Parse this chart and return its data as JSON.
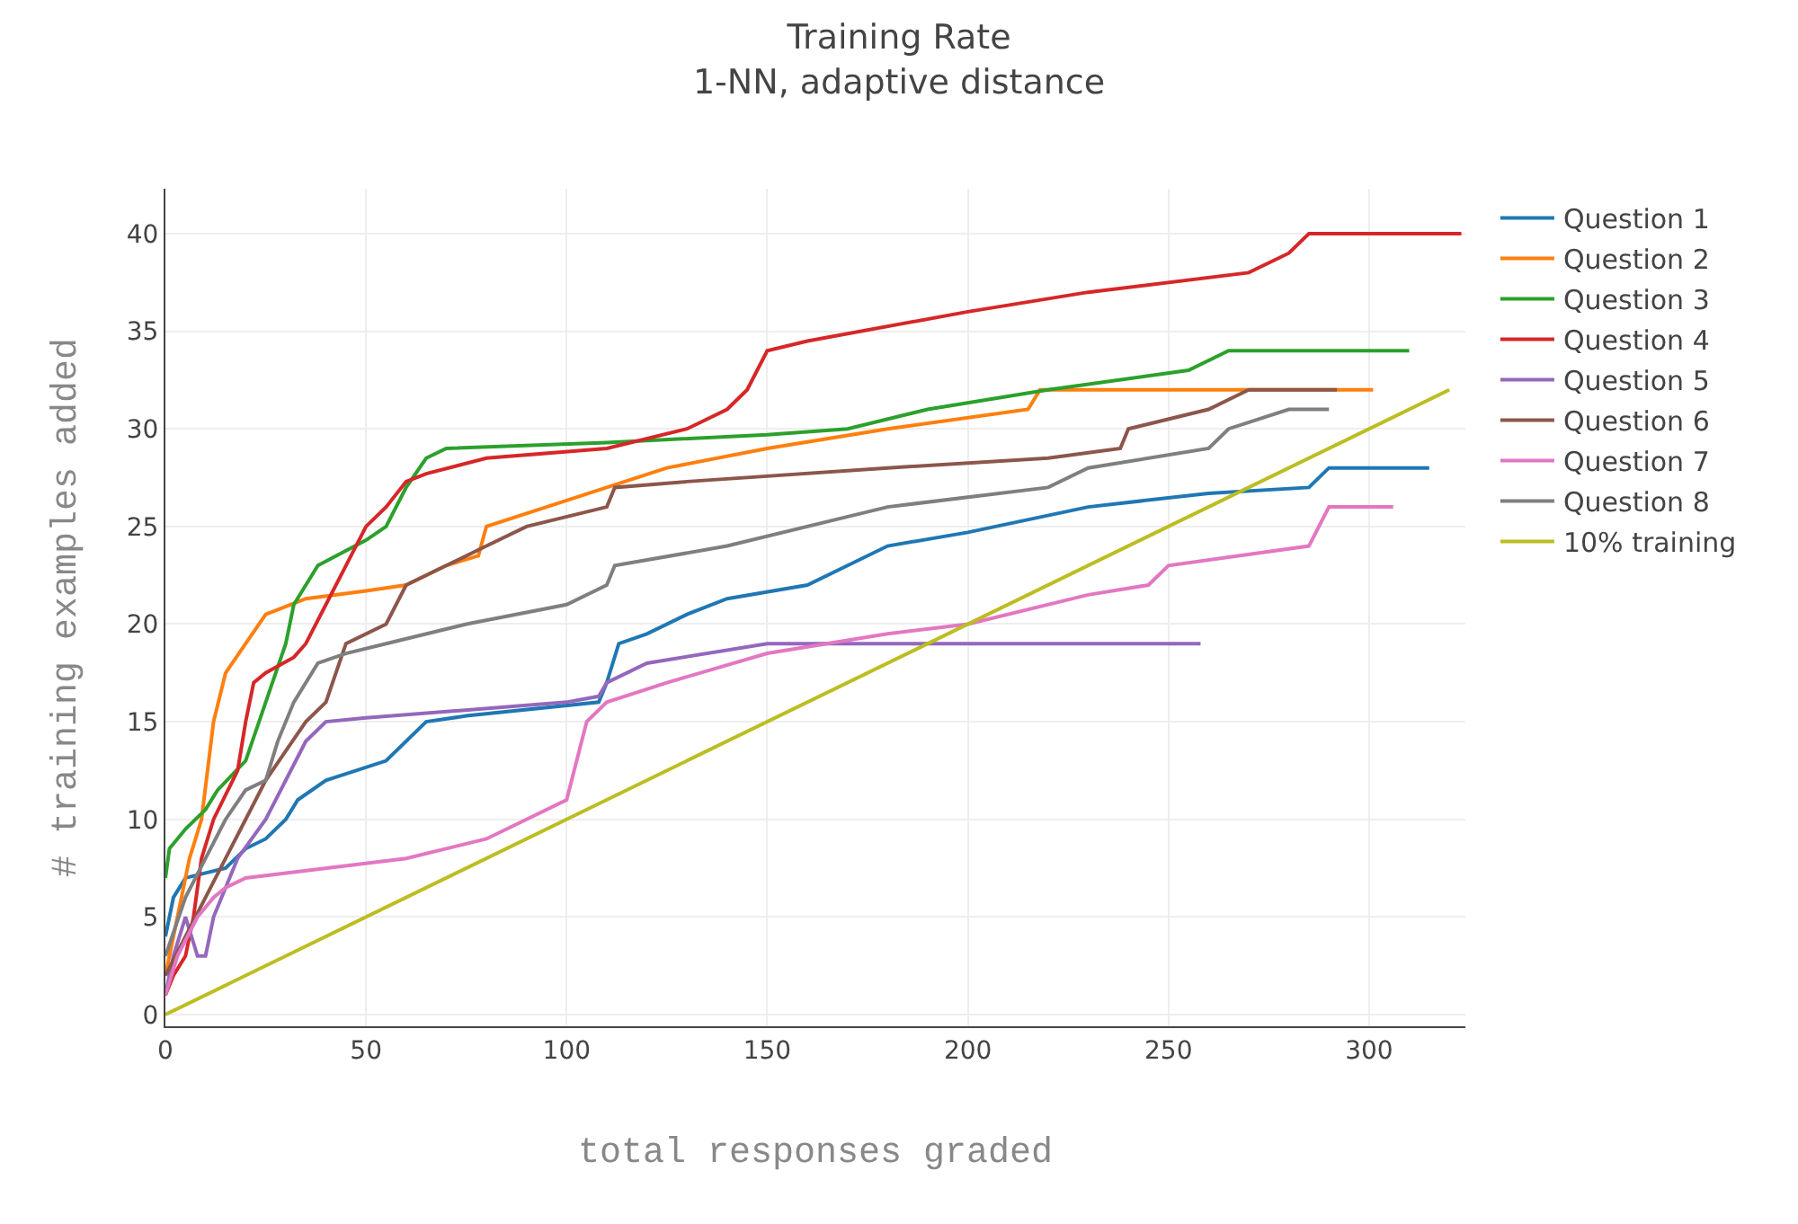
{
  "chart_data": {
    "type": "line",
    "title": "Training Rate",
    "subtitle": "1-NN, adaptive distance",
    "xlabel": "total responses graded",
    "ylabel": "# training examples added",
    "xlim": [
      0,
      324
    ],
    "ylim": [
      -0.6,
      42.3
    ],
    "xticks": [
      0,
      50,
      100,
      150,
      200,
      250,
      300
    ],
    "yticks": [
      0,
      5,
      10,
      15,
      20,
      25,
      30,
      35,
      40
    ],
    "grid": true,
    "legend": "top right",
    "marker": "none",
    "line_style": "solid",
    "series": [
      {
        "name": "Question 1",
        "color": "#1f77b4",
        "x": [
          0,
          2,
          5,
          15,
          20,
          25,
          30,
          33,
          40,
          55,
          65,
          75,
          108,
          110,
          113,
          120,
          130,
          140,
          160,
          180,
          200,
          230,
          260,
          285,
          290,
          315
        ],
        "values": [
          4,
          6,
          7,
          7.5,
          8.5,
          9,
          10,
          11,
          12,
          13,
          15,
          15.3,
          16,
          17,
          19,
          19.5,
          20.5,
          21.3,
          22,
          24,
          24.7,
          26,
          26.7,
          27,
          28,
          28
        ]
      },
      {
        "name": "Question 2",
        "color": "#ff7f0e",
        "x": [
          0,
          3,
          6,
          9,
          12,
          15,
          20,
          25,
          35,
          50,
          60,
          70,
          78,
          80,
          95,
          110,
          125,
          150,
          180,
          215,
          218,
          240,
          301
        ],
        "values": [
          2,
          5,
          8,
          10,
          15,
          17.5,
          19,
          20.5,
          21.3,
          21.7,
          22,
          23,
          23.5,
          25,
          26,
          27,
          28,
          29,
          30,
          31,
          32,
          32,
          32
        ]
      },
      {
        "name": "Question 3",
        "color": "#2ca02c",
        "x": [
          0,
          1,
          5,
          10,
          13,
          20,
          25,
          30,
          32,
          38,
          50,
          55,
          60,
          65,
          70,
          110,
          150,
          170,
          190,
          220,
          255,
          265,
          310
        ],
        "values": [
          7,
          8.5,
          9.5,
          10.5,
          11.5,
          13,
          16,
          19,
          21,
          23,
          24.3,
          25,
          27,
          28.5,
          29,
          29.3,
          29.7,
          30,
          31,
          32,
          33,
          34,
          34
        ]
      },
      {
        "name": "Question 4",
        "color": "#d62728",
        "x": [
          0,
          2,
          5,
          7,
          9,
          12,
          18,
          20,
          22,
          25,
          32,
          35,
          40,
          45,
          50,
          55,
          60,
          65,
          80,
          110,
          130,
          140,
          145,
          150,
          160,
          200,
          230,
          270,
          280,
          285,
          323
        ],
        "values": [
          1,
          2,
          3,
          5,
          8,
          10,
          12.5,
          15,
          17,
          17.5,
          18.3,
          19,
          21,
          23,
          25,
          26,
          27.3,
          27.7,
          28.5,
          29,
          30,
          31,
          32,
          34,
          34.5,
          36,
          37,
          38,
          39,
          40,
          40
        ]
      },
      {
        "name": "Question 5",
        "color": "#9467bd",
        "x": [
          0,
          2,
          5,
          8,
          10,
          12,
          18,
          25,
          35,
          40,
          50,
          100,
          108,
          110,
          120,
          150,
          258
        ],
        "values": [
          1,
          3,
          5,
          3,
          3,
          5,
          8,
          10,
          14,
          15,
          15.2,
          16,
          16.3,
          17,
          18,
          19,
          19
        ]
      },
      {
        "name": "Question 6",
        "color": "#8c564b",
        "x": [
          0,
          5,
          10,
          15,
          20,
          25,
          30,
          35,
          40,
          45,
          55,
          60,
          70,
          80,
          90,
          110,
          112,
          130,
          180,
          220,
          238,
          240,
          260,
          270,
          292
        ],
        "values": [
          2,
          4,
          6,
          8,
          10,
          12,
          13.5,
          15,
          16,
          19,
          20,
          22,
          23,
          24,
          25,
          26,
          27,
          27.3,
          28,
          28.5,
          29,
          30,
          31,
          32,
          32
        ]
      },
      {
        "name": "Question 7",
        "color": "#e377c2",
        "x": [
          0,
          3,
          8,
          12,
          15,
          20,
          60,
          80,
          100,
          105,
          110,
          125,
          150,
          180,
          200,
          230,
          245,
          250,
          285,
          290,
          306
        ],
        "values": [
          1,
          3,
          5,
          6,
          6.5,
          7,
          8,
          9,
          11,
          15,
          16,
          17,
          18.5,
          19.5,
          20,
          21.5,
          22,
          23,
          24,
          26,
          26
        ]
      },
      {
        "name": "Question 8",
        "color": "#7f7f7f",
        "x": [
          0,
          5,
          10,
          15,
          20,
          25,
          28,
          32,
          38,
          45,
          55,
          75,
          100,
          110,
          112,
          140,
          180,
          220,
          230,
          260,
          265,
          280,
          290
        ],
        "values": [
          3,
          6,
          8,
          10,
          11.5,
          12,
          14,
          16,
          18,
          18.5,
          19,
          20,
          21,
          22,
          23,
          24,
          26,
          27,
          28,
          29,
          30,
          31,
          31
        ]
      },
      {
        "name": "10% training",
        "color": "#bcbd22",
        "x": [
          0,
          320
        ],
        "values": [
          0,
          32
        ]
      }
    ]
  }
}
